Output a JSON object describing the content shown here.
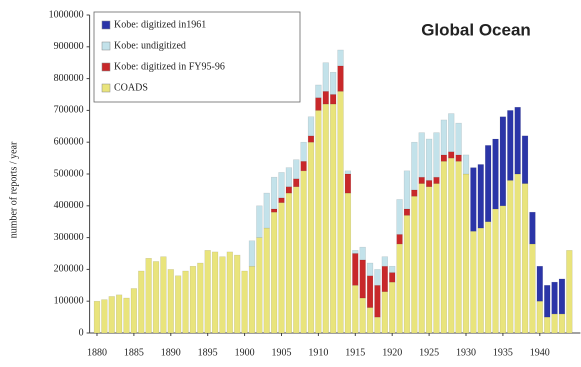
{
  "chart_data": {
    "type": "stacked_bar",
    "title": "Global Ocean",
    "y_label": "number of reports / year",
    "x": [
      1880,
      1881,
      1882,
      1883,
      1884,
      1885,
      1886,
      1887,
      1888,
      1889,
      1890,
      1891,
      1892,
      1893,
      1894,
      1895,
      1896,
      1897,
      1898,
      1899,
      1900,
      1901,
      1902,
      1903,
      1904,
      1905,
      1906,
      1907,
      1908,
      1909,
      1910,
      1911,
      1912,
      1913,
      1914,
      1915,
      1916,
      1917,
      1918,
      1919,
      1920,
      1921,
      1922,
      1923,
      1924,
      1925,
      1926,
      1927,
      1928,
      1929,
      1930,
      1931,
      1932,
      1933,
      1934,
      1935,
      1936,
      1937,
      1938,
      1939,
      1940,
      1941,
      1942,
      1943,
      1944
    ],
    "series": [
      {
        "name": "Kobe: digitized in1961",
        "color": "#2b35a8",
        "values": [
          0,
          0,
          0,
          0,
          0,
          0,
          0,
          0,
          0,
          0,
          0,
          0,
          0,
          0,
          0,
          0,
          0,
          0,
          0,
          0,
          0,
          0,
          0,
          0,
          0,
          0,
          0,
          0,
          0,
          0,
          0,
          0,
          0,
          0,
          0,
          0,
          0,
          0,
          0,
          0,
          0,
          0,
          0,
          0,
          0,
          0,
          0,
          0,
          0,
          0,
          0,
          200000,
          200000,
          240000,
          220000,
          280000,
          220000,
          210000,
          150000,
          100000,
          110000,
          100000,
          100000,
          110000,
          0
        ]
      },
      {
        "name": "Kobe: undigitized",
        "color": "#c3e2ea",
        "values": [
          0,
          0,
          0,
          0,
          0,
          0,
          0,
          0,
          0,
          0,
          0,
          0,
          0,
          0,
          0,
          0,
          0,
          0,
          0,
          0,
          0,
          80000,
          100000,
          110000,
          100000,
          80000,
          60000,
          60000,
          60000,
          60000,
          40000,
          90000,
          70000,
          50000,
          10000,
          10000,
          40000,
          40000,
          50000,
          30000,
          20000,
          110000,
          120000,
          150000,
          140000,
          130000,
          140000,
          110000,
          120000,
          100000,
          60000,
          0,
          0,
          0,
          0,
          0,
          0,
          0,
          0,
          0,
          0,
          0,
          0,
          0,
          0
        ]
      },
      {
        "name": "Kobe: digitized in FY95-96",
        "color": "#c8282a",
        "values": [
          0,
          0,
          0,
          0,
          0,
          0,
          0,
          0,
          0,
          0,
          0,
          0,
          0,
          0,
          0,
          0,
          0,
          0,
          0,
          0,
          0,
          0,
          0,
          0,
          10000,
          15000,
          20000,
          25000,
          30000,
          20000,
          40000,
          40000,
          30000,
          80000,
          60000,
          100000,
          120000,
          100000,
          100000,
          80000,
          30000,
          30000,
          20000,
          20000,
          20000,
          20000,
          20000,
          20000,
          20000,
          20000,
          0,
          0,
          0,
          0,
          0,
          0,
          0,
          0,
          0,
          0,
          0,
          0,
          0,
          0,
          0
        ]
      },
      {
        "name": "COADS",
        "color": "#e9e47c",
        "values": [
          100000,
          105000,
          115000,
          120000,
          110000,
          140000,
          195000,
          235000,
          225000,
          240000,
          200000,
          180000,
          195000,
          210000,
          220000,
          260000,
          255000,
          240000,
          255000,
          245000,
          195000,
          210000,
          300000,
          330000,
          380000,
          410000,
          440000,
          460000,
          510000,
          600000,
          700000,
          720000,
          720000,
          760000,
          440000,
          150000,
          110000,
          80000,
          50000,
          130000,
          160000,
          280000,
          370000,
          430000,
          470000,
          460000,
          470000,
          540000,
          550000,
          540000,
          500000,
          320000,
          330000,
          350000,
          390000,
          400000,
          480000,
          500000,
          470000,
          280000,
          100000,
          50000,
          60000,
          60000,
          260000
        ]
      }
    ],
    "xlim": [
      1879,
      1945.5
    ],
    "xticks": [
      1880,
      1885,
      1890,
      1895,
      1900,
      1905,
      1910,
      1915,
      1920,
      1925,
      1930,
      1935,
      1940
    ],
    "ylim": [
      0,
      1000000
    ],
    "yticks": [
      0,
      100000,
      200000,
      300000,
      400000,
      500000,
      600000,
      700000,
      800000,
      900000,
      1000000
    ],
    "legend": "upper left"
  }
}
